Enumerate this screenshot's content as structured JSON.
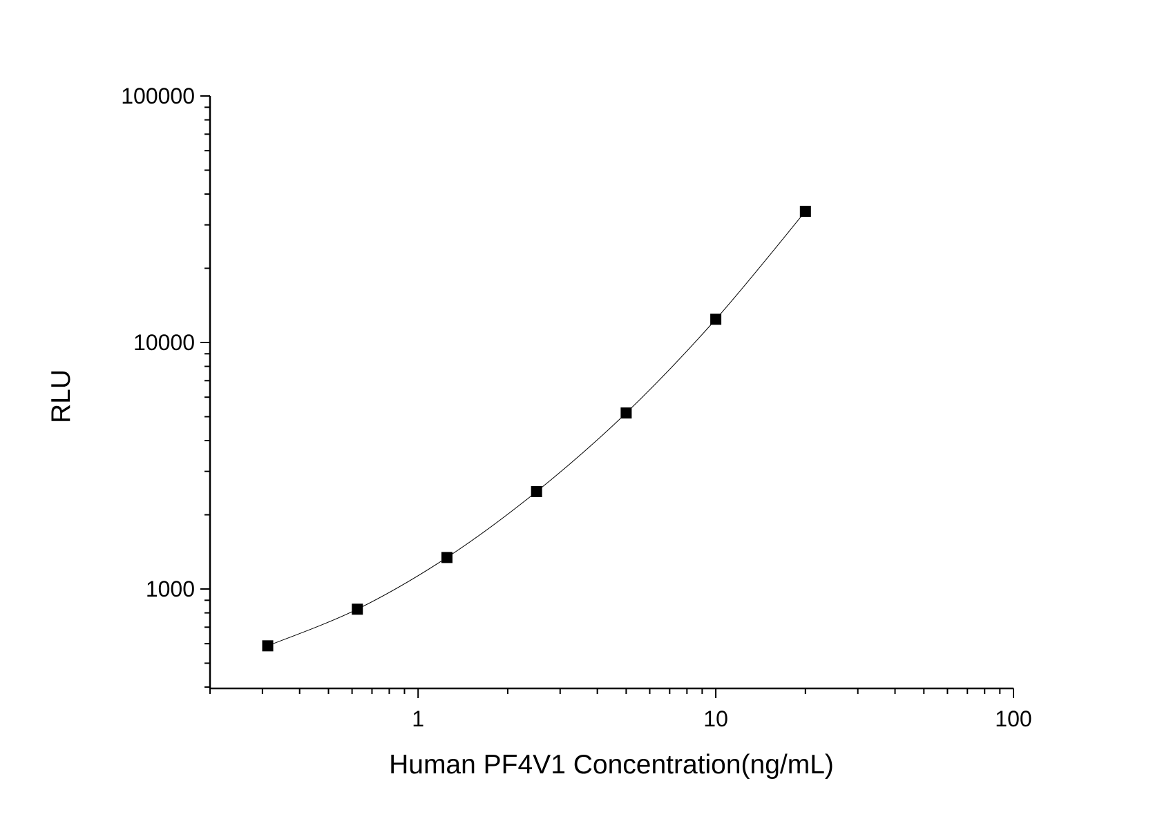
{
  "chart_data": {
    "type": "line",
    "title": "",
    "xlabel": "Human PF4V1 Concentration(ng/mL)",
    "ylabel": "RLU",
    "x_scale": "log",
    "y_scale": "log",
    "xlim": [
      0.2,
      100
    ],
    "ylim": [
      395,
      100000
    ],
    "x_ticks": [
      {
        "value": 1,
        "label": "1"
      },
      {
        "value": 10,
        "label": "10"
      },
      {
        "value": 100,
        "label": "100"
      }
    ],
    "y_ticks": [
      {
        "value": 1000,
        "label": "1000"
      },
      {
        "value": 10000,
        "label": "10000"
      },
      {
        "value": 100000,
        "label": "100000"
      }
    ],
    "grid": false,
    "marker": "square",
    "color": "#000000",
    "series": [
      {
        "x": [
          0.3125,
          0.625,
          1.25,
          2.5,
          5,
          10,
          20
        ],
        "y": [
          588,
          828,
          1342,
          2483,
          5176,
          12420,
          34040
        ]
      }
    ]
  }
}
